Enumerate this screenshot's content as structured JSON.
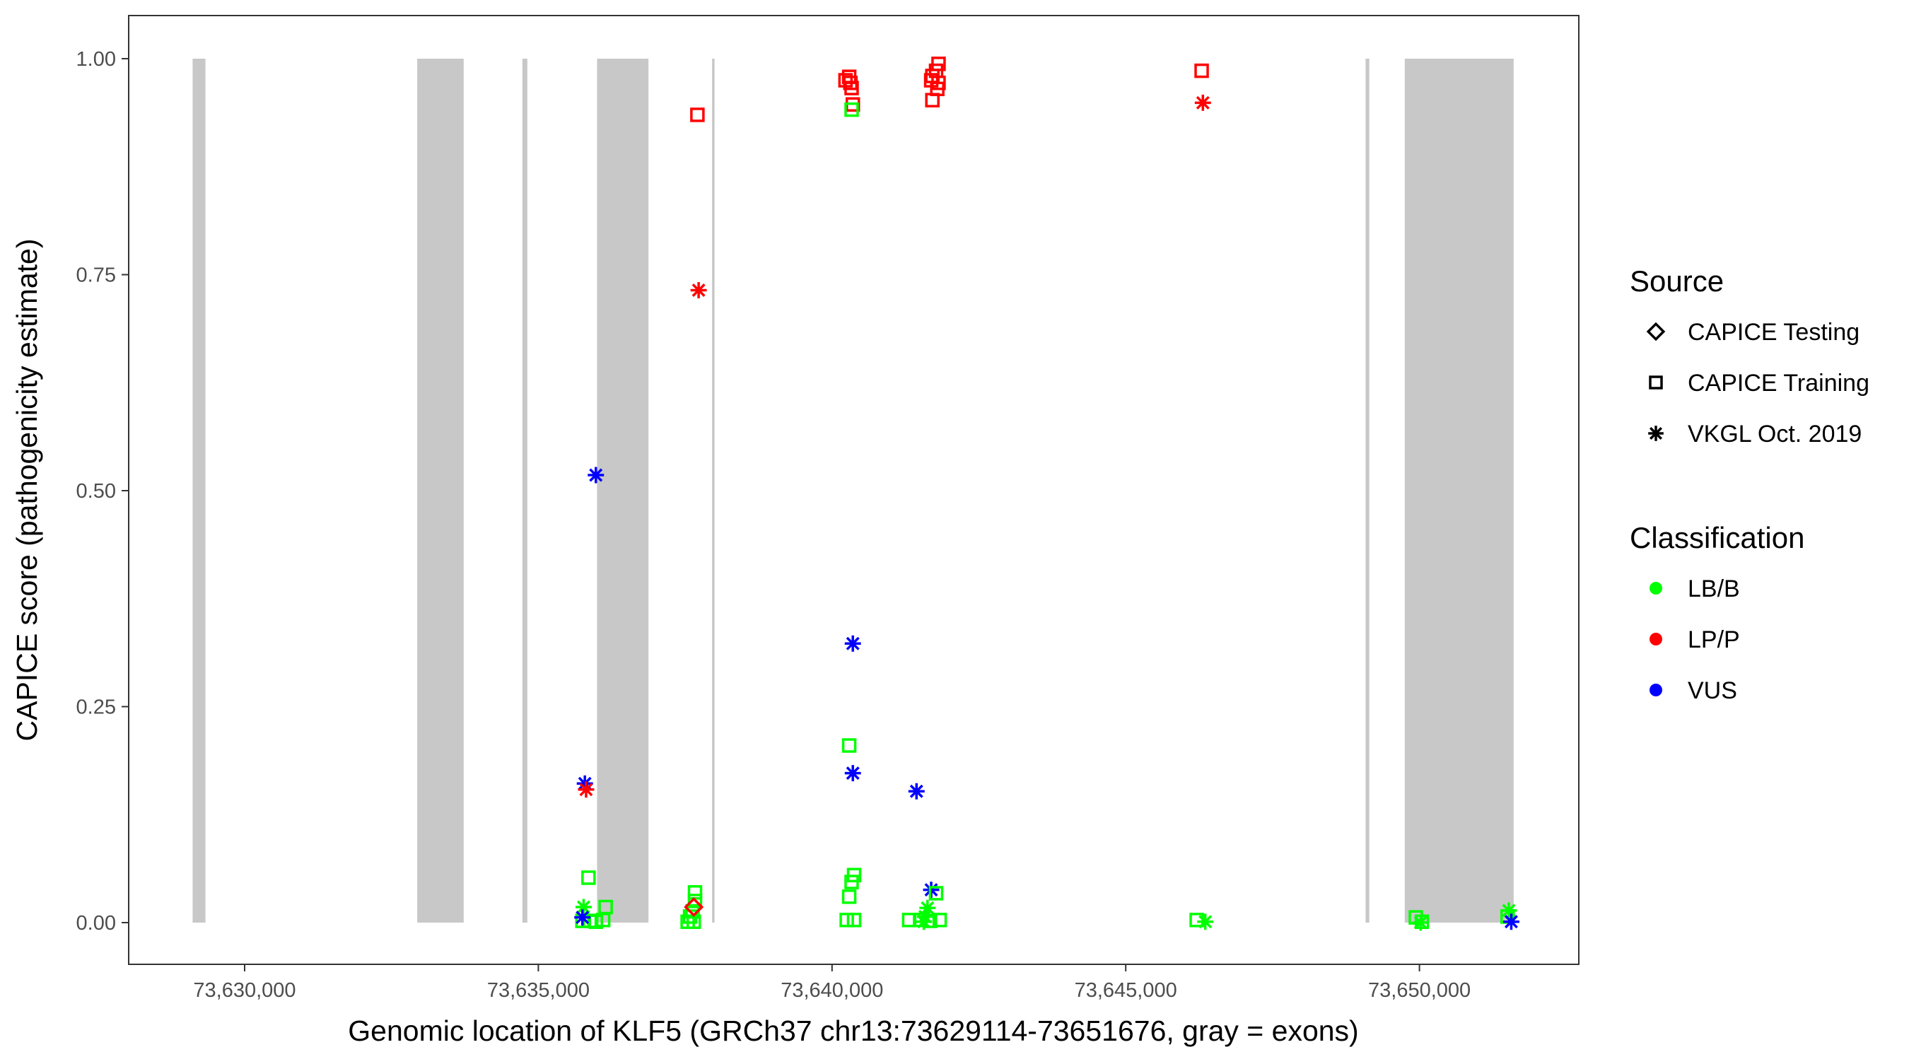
{
  "chart_data": {
    "type": "scatter",
    "xlabel": "Genomic location of KLF5 (GRCh37 chr13:73629114-73651676, gray = exons)",
    "ylabel": "CAPICE score (pathogenicity estimate)",
    "xlim": [
      73627900,
      73652600
    ],
    "ylim": [
      -0.046,
      1.05
    ],
    "xticks": [
      73630000,
      73635000,
      73640000,
      73645000,
      73650000
    ],
    "xtick_labels": [
      "73,630,000",
      "73,635,000",
      "73,640,000",
      "73,645,000",
      "73,650,000"
    ],
    "yticks": [
      0,
      0.25,
      0.5,
      0.75,
      1.0
    ],
    "ytick_labels": [
      "0.00",
      "0.25",
      "0.50",
      "0.75",
      "1.00"
    ],
    "grid": false,
    "exons": [
      [
        73629114,
        73629333
      ],
      [
        73632938,
        73633729
      ],
      [
        73634729,
        73634813
      ],
      [
        73636000,
        73636875
      ],
      [
        73637958,
        73638000
      ],
      [
        73649083,
        73649146
      ],
      [
        73649750,
        73651604
      ]
    ],
    "exon_color": "#C8C8C8",
    "legend": {
      "placement": "right",
      "source_title": "Source",
      "sources": [
        {
          "label": "CAPICE Testing",
          "shape": "diamond"
        },
        {
          "label": "CAPICE Training",
          "shape": "square"
        },
        {
          "label": "VKGL Oct. 2019",
          "shape": "asterisk"
        }
      ],
      "class_title": "Classification",
      "classes": [
        {
          "label": "LB/B",
          "color": "#00FF00"
        },
        {
          "label": "LP/P",
          "color": "#FF0000"
        },
        {
          "label": "VUS",
          "color": "#0000FF"
        }
      ]
    },
    "points": [
      {
        "x": 73635979,
        "y": 0.518,
        "source": "VKGL Oct. 2019",
        "class": "VUS"
      },
      {
        "x": 73635792,
        "y": 0.161,
        "source": "VKGL Oct. 2019",
        "class": "VUS"
      },
      {
        "x": 73635813,
        "y": 0.154,
        "source": "VKGL Oct. 2019",
        "class": "LP/P"
      },
      {
        "x": 73635854,
        "y": 0.052,
        "source": "CAPICE Training",
        "class": "LB/B"
      },
      {
        "x": 73635771,
        "y": 0.018,
        "source": "VKGL Oct. 2019",
        "class": "LB/B"
      },
      {
        "x": 73636146,
        "y": 0.018,
        "source": "CAPICE Training",
        "class": "LB/B"
      },
      {
        "x": 73636104,
        "y": 0.003,
        "source": "CAPICE Training",
        "class": "LB/B"
      },
      {
        "x": 73635750,
        "y": 0.002,
        "source": "CAPICE Training",
        "class": "LB/B"
      },
      {
        "x": 73635875,
        "y": 0.002,
        "source": "CAPICE Training",
        "class": "LB/B"
      },
      {
        "x": 73635979,
        "y": 0.001,
        "source": "CAPICE Training",
        "class": "LB/B"
      },
      {
        "x": 73635750,
        "y": 0.006,
        "source": "VKGL Oct. 2019",
        "class": "VUS"
      },
      {
        "x": 73637708,
        "y": 0.935,
        "source": "CAPICE Training",
        "class": "LP/P"
      },
      {
        "x": 73637729,
        "y": 0.732,
        "source": "VKGL Oct. 2019",
        "class": "LP/P"
      },
      {
        "x": 73637667,
        "y": 0.035,
        "source": "CAPICE Training",
        "class": "LB/B"
      },
      {
        "x": 73637667,
        "y": 0.025,
        "source": "CAPICE Training",
        "class": "LB/B"
      },
      {
        "x": 73637625,
        "y": 0.013,
        "source": "CAPICE Training",
        "class": "LB/B"
      },
      {
        "x": 73637583,
        "y": 0.007,
        "source": "CAPICE Training",
        "class": "LB/B"
      },
      {
        "x": 73637542,
        "y": 0.001,
        "source": "CAPICE Training",
        "class": "LB/B"
      },
      {
        "x": 73637646,
        "y": 0.001,
        "source": "CAPICE Training",
        "class": "LB/B"
      },
      {
        "x": 73637646,
        "y": 0.018,
        "source": "CAPICE Testing",
        "class": "LP/P"
      },
      {
        "x": 73640229,
        "y": 0.975,
        "source": "CAPICE Training",
        "class": "LP/P"
      },
      {
        "x": 73640292,
        "y": 0.979,
        "source": "CAPICE Training",
        "class": "LP/P"
      },
      {
        "x": 73640313,
        "y": 0.972,
        "source": "CAPICE Training",
        "class": "LP/P"
      },
      {
        "x": 73640333,
        "y": 0.966,
        "source": "CAPICE Training",
        "class": "LP/P"
      },
      {
        "x": 73640354,
        "y": 0.947,
        "source": "CAPICE Training",
        "class": "LP/P"
      },
      {
        "x": 73640333,
        "y": 0.941,
        "source": "CAPICE Training",
        "class": "LB/B"
      },
      {
        "x": 73640354,
        "y": 0.323,
        "source": "VKGL Oct. 2019",
        "class": "VUS"
      },
      {
        "x": 73640292,
        "y": 0.205,
        "source": "CAPICE Training",
        "class": "LB/B"
      },
      {
        "x": 73640354,
        "y": 0.173,
        "source": "VKGL Oct. 2019",
        "class": "VUS"
      },
      {
        "x": 73640375,
        "y": 0.055,
        "source": "CAPICE Training",
        "class": "LB/B"
      },
      {
        "x": 73640333,
        "y": 0.047,
        "source": "CAPICE Training",
        "class": "LB/B"
      },
      {
        "x": 73640292,
        "y": 0.03,
        "source": "CAPICE Training",
        "class": "LB/B"
      },
      {
        "x": 73640250,
        "y": 0.003,
        "source": "CAPICE Training",
        "class": "LB/B"
      },
      {
        "x": 73640375,
        "y": 0.003,
        "source": "CAPICE Training",
        "class": "LB/B"
      },
      {
        "x": 73641438,
        "y": 0.152,
        "source": "VKGL Oct. 2019",
        "class": "VUS"
      },
      {
        "x": 73641813,
        "y": 0.994,
        "source": "CAPICE Training",
        "class": "LP/P"
      },
      {
        "x": 73641771,
        "y": 0.986,
        "source": "CAPICE Training",
        "class": "LP/P"
      },
      {
        "x": 73641708,
        "y": 0.98,
        "source": "CAPICE Training",
        "class": "LP/P"
      },
      {
        "x": 73641688,
        "y": 0.975,
        "source": "CAPICE Training",
        "class": "LP/P"
      },
      {
        "x": 73641813,
        "y": 0.972,
        "source": "CAPICE Training",
        "class": "LP/P"
      },
      {
        "x": 73641792,
        "y": 0.965,
        "source": "CAPICE Training",
        "class": "LP/P"
      },
      {
        "x": 73641708,
        "y": 0.952,
        "source": "CAPICE Training",
        "class": "LP/P"
      },
      {
        "x": 73641688,
        "y": 0.038,
        "source": "VKGL Oct. 2019",
        "class": "VUS"
      },
      {
        "x": 73641771,
        "y": 0.034,
        "source": "CAPICE Training",
        "class": "LB/B"
      },
      {
        "x": 73641625,
        "y": 0.017,
        "source": "VKGL Oct. 2019",
        "class": "LB/B"
      },
      {
        "x": 73641583,
        "y": 0.007,
        "source": "VKGL Oct. 2019",
        "class": "LB/B"
      },
      {
        "x": 73641563,
        "y": 0.001,
        "source": "VKGL Oct. 2019",
        "class": "LB/B"
      },
      {
        "x": 73641313,
        "y": 0.003,
        "source": "CAPICE Training",
        "class": "LB/B"
      },
      {
        "x": 73641500,
        "y": 0.003,
        "source": "CAPICE Training",
        "class": "LB/B"
      },
      {
        "x": 73641667,
        "y": 0.002,
        "source": "CAPICE Training",
        "class": "LB/B"
      },
      {
        "x": 73641833,
        "y": 0.003,
        "source": "CAPICE Training",
        "class": "LB/B"
      },
      {
        "x": 73646292,
        "y": 0.986,
        "source": "CAPICE Training",
        "class": "LP/P"
      },
      {
        "x": 73646313,
        "y": 0.949,
        "source": "VKGL Oct. 2019",
        "class": "LP/P"
      },
      {
        "x": 73646208,
        "y": 0.003,
        "source": "CAPICE Training",
        "class": "LB/B"
      },
      {
        "x": 73646354,
        "y": 0.001,
        "source": "VKGL Oct. 2019",
        "class": "LB/B"
      },
      {
        "x": 73649938,
        "y": 0.006,
        "source": "CAPICE Training",
        "class": "LB/B"
      },
      {
        "x": 73650042,
        "y": 0.001,
        "source": "CAPICE Training",
        "class": "LB/B"
      },
      {
        "x": 73650021,
        "y": 0.0,
        "source": "VKGL Oct. 2019",
        "class": "LB/B"
      },
      {
        "x": 73651521,
        "y": 0.014,
        "source": "VKGL Oct. 2019",
        "class": "LB/B"
      },
      {
        "x": 73651500,
        "y": 0.007,
        "source": "CAPICE Training",
        "class": "LB/B"
      },
      {
        "x": 73651563,
        "y": 0.001,
        "source": "VKGL Oct. 2019",
        "class": "VUS"
      }
    ]
  }
}
